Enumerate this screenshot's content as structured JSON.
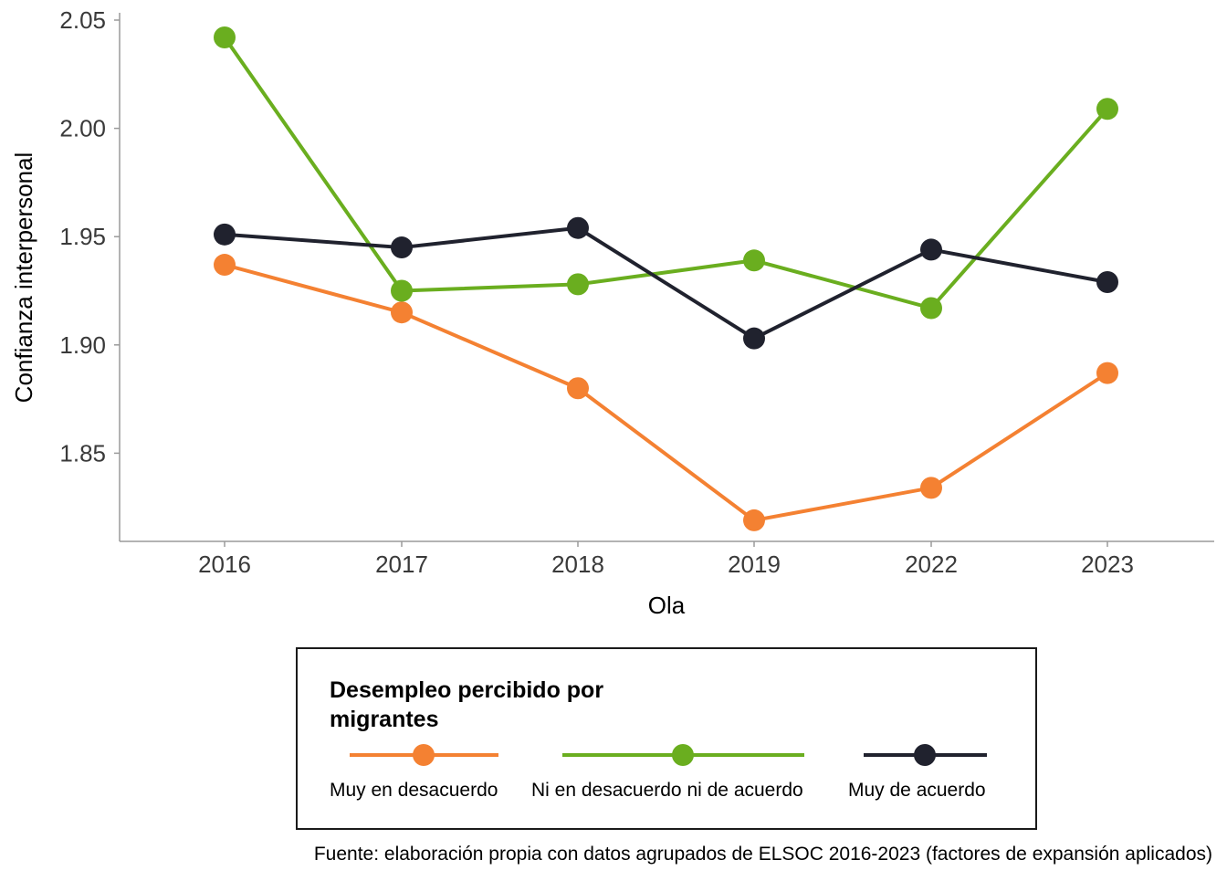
{
  "chart_data": {
    "type": "line",
    "categories": [
      "2016",
      "2017",
      "2018",
      "2019",
      "2022",
      "2023"
    ],
    "ylabel": "Confianza interpersonal",
    "xlabel": "Ola",
    "ylim": [
      1.805,
      2.055
    ],
    "yticks": [
      "1.85",
      "1.90",
      "1.95",
      "2.00",
      "2.05"
    ],
    "grid": false,
    "legend_position": "bottom",
    "legend_title": "Desempleo percibido por migrantes",
    "legend_title_lines": [
      "Desempleo percibido por",
      "migrantes"
    ],
    "series": [
      {
        "name": "Muy en desacuerdo",
        "color": "#F48132",
        "values": [
          1.937,
          1.915,
          1.88,
          1.819,
          1.834,
          1.887
        ]
      },
      {
        "name": "Ni en desacuerdo ni de acuerdo",
        "color": "#6AAE1F",
        "values": [
          2.042,
          1.925,
          1.928,
          1.939,
          1.917,
          2.009
        ]
      },
      {
        "name": "Muy de acuerdo",
        "color": "#20222E",
        "values": [
          1.951,
          1.945,
          1.954,
          1.903,
          1.944,
          1.929
        ]
      }
    ],
    "caption": "Fuente: elaboración propia con datos agrupados de ELSOC 2016-2023 (factores de expansión aplicados)"
  }
}
